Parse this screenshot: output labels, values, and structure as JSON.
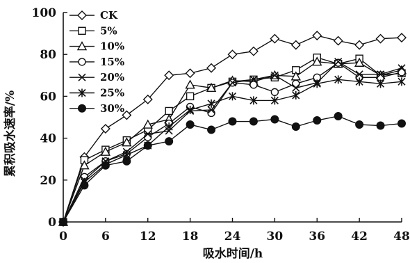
{
  "chart_data": {
    "type": "line",
    "title": "",
    "xlabel": "吸水时间/h",
    "ylabel": "累积吸水速率/%",
    "xlim": [
      0,
      48
    ],
    "ylim": [
      0,
      100
    ],
    "x_ticks": [
      0,
      6,
      12,
      18,
      24,
      30,
      36,
      42,
      48
    ],
    "y_ticks": [
      0,
      20,
      40,
      60,
      80,
      100
    ],
    "grid": false,
    "legend_position": "top-left",
    "x": [
      0,
      3,
      6,
      9,
      12,
      15,
      18,
      21,
      24,
      27,
      30,
      33,
      36,
      39,
      42,
      45,
      48
    ],
    "series": [
      {
        "name": "CK",
        "marker": "diamond-open",
        "values": [
          0,
          31,
          44.5,
          51,
          58.5,
          70,
          71,
          73.5,
          80,
          81.5,
          87.5,
          84.5,
          89,
          86.5,
          84.5,
          87.5,
          88
        ]
      },
      {
        "name": "5%",
        "marker": "square-open",
        "values": [
          0,
          29.5,
          34.5,
          39,
          44,
          53,
          60,
          64,
          67,
          68,
          69,
          72.5,
          78.5,
          75.5,
          78,
          70,
          71
        ]
      },
      {
        "name": "10%",
        "marker": "triangle-open",
        "values": [
          0,
          27,
          33.5,
          38,
          46.5,
          49,
          65.5,
          64,
          67.5,
          67,
          70,
          69.5,
          76.5,
          75.5,
          76,
          70,
          72.5
        ]
      },
      {
        "name": "15%",
        "marker": "circle-open",
        "values": [
          0,
          21.5,
          29,
          32.5,
          40.5,
          47,
          55,
          52,
          66.5,
          65.5,
          62,
          66,
          69,
          76,
          69,
          69,
          71.5
        ]
      },
      {
        "name": "20%",
        "marker": "x",
        "values": [
          0,
          20,
          29,
          33.5,
          42,
          43.5,
          53,
          53.5,
          66.5,
          68,
          70,
          64,
          66.5,
          76.5,
          70.5,
          70.5,
          73.5
        ]
      },
      {
        "name": "25%",
        "marker": "star",
        "values": [
          0,
          19,
          27.5,
          32,
          36.5,
          45.5,
          53.5,
          56.5,
          60,
          58,
          58,
          60.5,
          66,
          68,
          67,
          66,
          67
        ]
      },
      {
        "name": "30%",
        "marker": "circle-filled",
        "values": [
          0,
          17.5,
          27,
          29,
          36.5,
          38.5,
          46.5,
          44,
          48,
          48,
          49,
          45.5,
          48.5,
          50.5,
          46.5,
          46,
          47
        ]
      }
    ]
  }
}
